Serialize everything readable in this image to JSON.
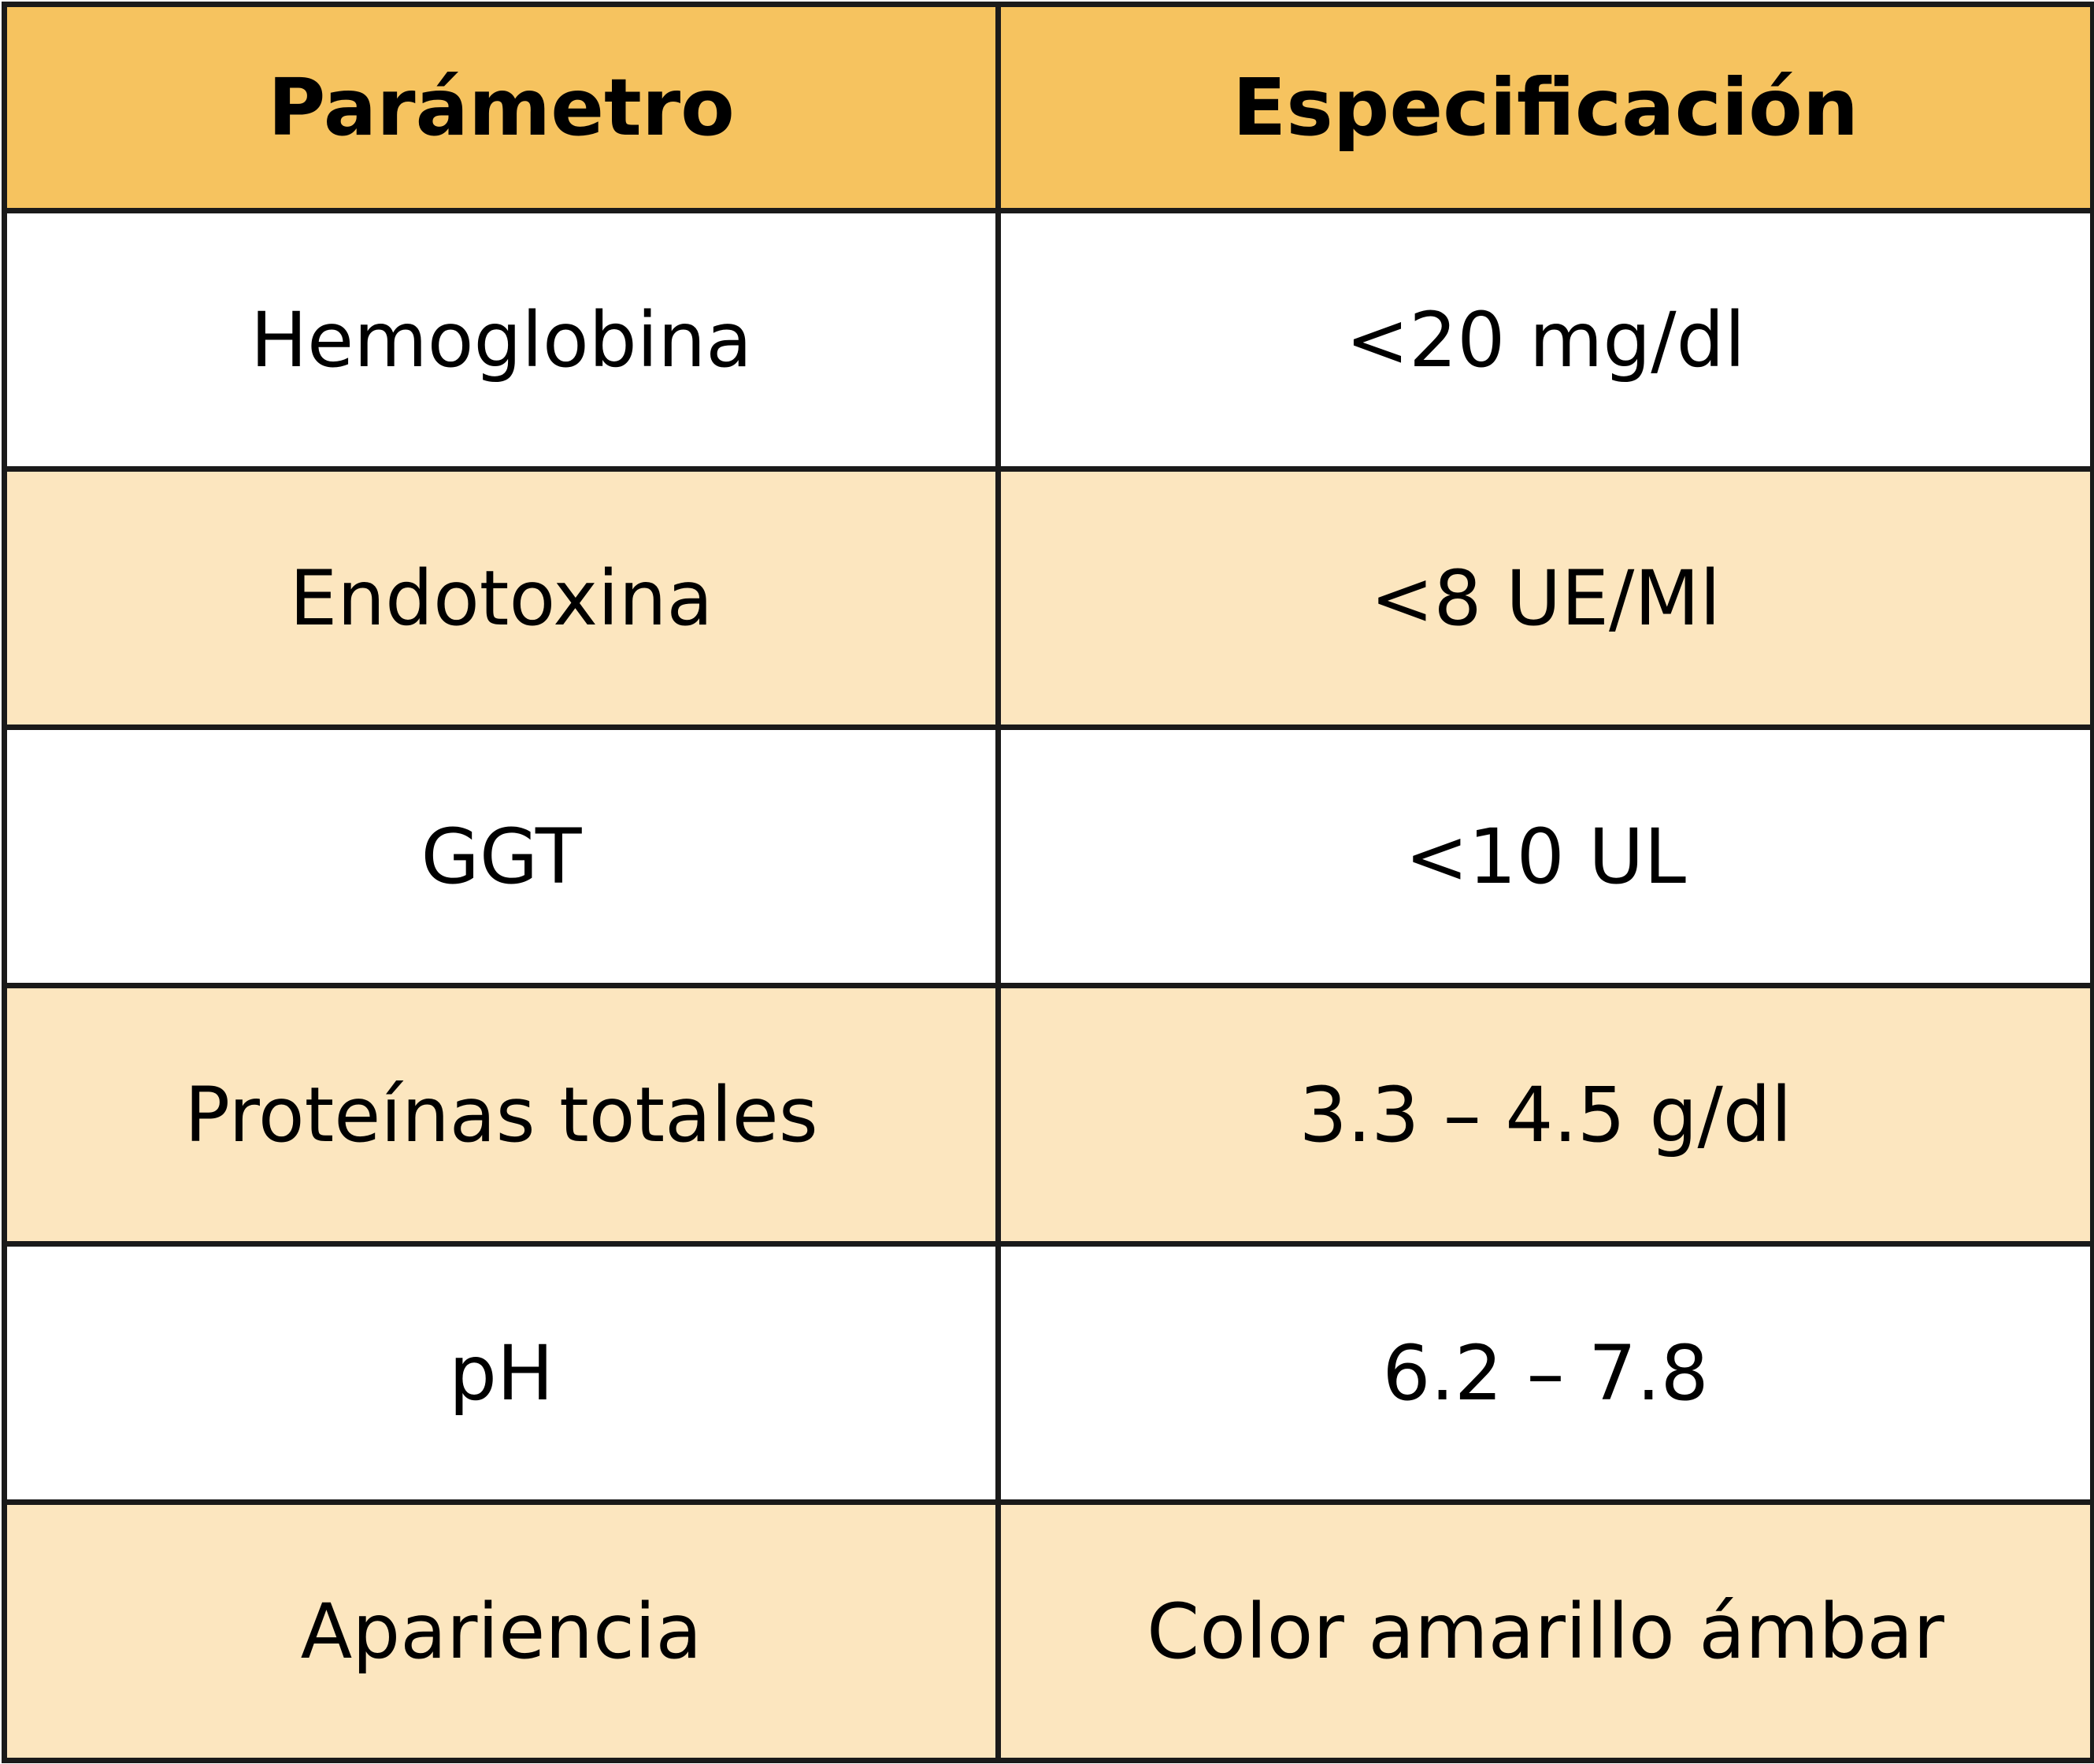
{
  "colors": {
    "header_bg": "#f6c35f",
    "row_alt_bg": "#fce6bf",
    "row_bg": "#ffffff",
    "border": "#1a1a1a"
  },
  "table": {
    "headers": [
      "Parámetro",
      "Especificación"
    ],
    "rows": [
      {
        "parameter": "Hemoglobina",
        "specification": "<20 mg/dl"
      },
      {
        "parameter": "Endotoxina",
        "specification": "<8 UE/Ml"
      },
      {
        "parameter": "GGT",
        "specification": "<10 UL"
      },
      {
        "parameter": "Proteínas totales",
        "specification": "3.3 – 4.5 g/dl"
      },
      {
        "parameter": "pH",
        "specification": "6.2 – 7.8"
      },
      {
        "parameter": "Apariencia",
        "specification": "Color amarillo ámbar"
      }
    ]
  }
}
